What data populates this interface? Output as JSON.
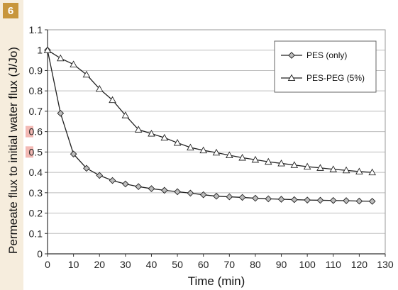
{
  "figure_number": "6",
  "colors": {
    "strip": "#f6eddd",
    "badge": "#c8963c",
    "highlight": "#f3b9b4",
    "grid": "#bdbdbd",
    "series": "#222222"
  },
  "chart_data": {
    "type": "line",
    "title": "",
    "xlabel": "Time (min)",
    "ylabel": "Permeate flux to initial water flux (J/Jo)",
    "xlim": [
      0,
      130
    ],
    "ylim": [
      0,
      1.1
    ],
    "x_ticks": [
      0,
      10,
      20,
      30,
      40,
      50,
      60,
      70,
      80,
      90,
      100,
      110,
      120,
      130
    ],
    "y_ticks": [
      0,
      0.1,
      0.2,
      0.3,
      0.4,
      0.5,
      0.6,
      0.7,
      0.8,
      0.9,
      1,
      1.1
    ],
    "y_tick_labels": [
      "0",
      "0.1",
      "0.2",
      "0.3",
      "0.4",
      "0.5",
      "0.6",
      "0.7",
      "0.8",
      "0.9",
      "1",
      "1.1"
    ],
    "highlighted_y_tick_labels": [
      "0.6",
      "0.5"
    ],
    "grid": "horizontal",
    "legend_position": "top-right",
    "series": [
      {
        "name": "PES (only)",
        "marker": "diamond",
        "x": [
          0,
          5,
          10,
          15,
          20,
          25,
          30,
          35,
          40,
          45,
          50,
          55,
          60,
          65,
          70,
          75,
          80,
          85,
          90,
          95,
          100,
          105,
          110,
          115,
          120,
          125
        ],
        "y": [
          1.0,
          0.69,
          0.49,
          0.42,
          0.385,
          0.36,
          0.343,
          0.33,
          0.32,
          0.312,
          0.305,
          0.298,
          0.29,
          0.283,
          0.28,
          0.277,
          0.273,
          0.27,
          0.268,
          0.266,
          0.264,
          0.263,
          0.262,
          0.261,
          0.259,
          0.258
        ]
      },
      {
        "name": "PES-PEG (5%)",
        "marker": "triangle",
        "x": [
          0,
          5,
          10,
          15,
          20,
          25,
          30,
          35,
          40,
          45,
          50,
          55,
          60,
          65,
          70,
          75,
          80,
          85,
          90,
          95,
          100,
          105,
          110,
          115,
          120,
          125
        ],
        "y": [
          1.0,
          0.96,
          0.93,
          0.88,
          0.81,
          0.755,
          0.68,
          0.61,
          0.59,
          0.57,
          0.545,
          0.522,
          0.508,
          0.497,
          0.484,
          0.472,
          0.462,
          0.452,
          0.444,
          0.436,
          0.428,
          0.422,
          0.415,
          0.41,
          0.404,
          0.4
        ]
      }
    ]
  }
}
